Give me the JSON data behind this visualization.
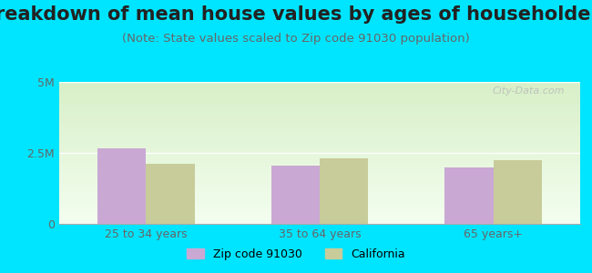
{
  "title": "Breakdown of mean house values by ages of householders",
  "subtitle": "(Note: State values scaled to Zip code 91030 population)",
  "categories": [
    "25 to 34 years",
    "35 to 64 years",
    "65 years+"
  ],
  "zip_values": [
    2650000,
    2050000,
    2000000
  ],
  "ca_values": [
    2100000,
    2300000,
    2250000
  ],
  "zip_color": "#c9a8d4",
  "ca_color": "#c8cc9a",
  "ylim": [
    0,
    5000000
  ],
  "yticks": [
    0,
    2500000,
    5000000
  ],
  "ytick_labels": [
    "0",
    "2.5M",
    "5M"
  ],
  "bg_outer": "#00e5ff",
  "bg_plot": "#eef8e8",
  "legend_zip_label": "Zip code 91030",
  "legend_ca_label": "California",
  "title_fontsize": 15,
  "subtitle_fontsize": 9.5,
  "watermark": "City-Data.com"
}
